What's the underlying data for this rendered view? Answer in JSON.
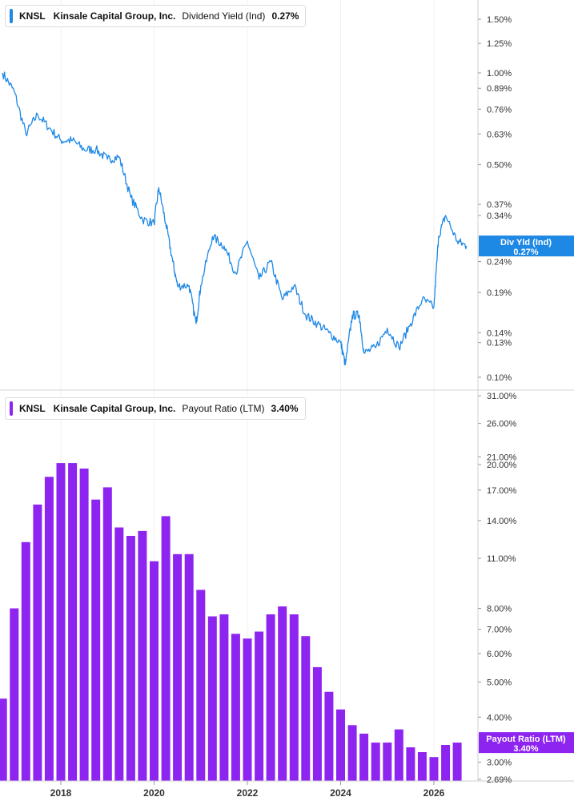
{
  "chart_data": [
    {
      "type": "line",
      "ticker": "KNSL",
      "company": "Kinsale Capital Group, Inc.",
      "metric": "Dividend Yield (Ind)",
      "current_value": "0.27%",
      "end_label": [
        "Div Yld (Ind)",
        "0.27%"
      ],
      "scale": "log",
      "color": "#1e88e5",
      "y_ticks": [
        "1.50%",
        "1.25%",
        "1.00%",
        "0.89%",
        "0.76%",
        "0.63%",
        "0.50%",
        "0.37%",
        "0.34%",
        "0.24%",
        "0.19%",
        "0.14%",
        "0.13%",
        "0.10%"
      ],
      "x": [
        2016.75,
        2017.0,
        2017.25,
        2017.5,
        2017.75,
        2018.0,
        2018.25,
        2018.5,
        2018.75,
        2019.0,
        2019.25,
        2019.5,
        2019.75,
        2020.0,
        2020.1,
        2020.25,
        2020.4,
        2020.5,
        2020.75,
        2020.9,
        2021.0,
        2021.25,
        2021.5,
        2021.75,
        2022.0,
        2022.25,
        2022.5,
        2022.75,
        2023.0,
        2023.25,
        2023.5,
        2023.75,
        2024.0,
        2024.1,
        2024.25,
        2024.4,
        2024.5,
        2024.75,
        2025.0,
        2025.25,
        2025.5,
        2025.75,
        2026.0,
        2026.1,
        2026.25,
        2026.5,
        2026.7
      ],
      "y": [
        1.0,
        0.87,
        0.63,
        0.73,
        0.66,
        0.6,
        0.6,
        0.56,
        0.56,
        0.52,
        0.53,
        0.39,
        0.33,
        0.32,
        0.42,
        0.32,
        0.24,
        0.2,
        0.2,
        0.15,
        0.2,
        0.29,
        0.27,
        0.22,
        0.28,
        0.21,
        0.24,
        0.18,
        0.2,
        0.16,
        0.15,
        0.14,
        0.13,
        0.11,
        0.16,
        0.16,
        0.12,
        0.125,
        0.145,
        0.125,
        0.15,
        0.18,
        0.17,
        0.29,
        0.34,
        0.28,
        0.27
      ]
    },
    {
      "type": "bar",
      "ticker": "KNSL",
      "company": "Kinsale Capital Group, Inc.",
      "metric": "Payout Ratio (LTM)",
      "current_value": "3.40%",
      "end_label": [
        "Payout Ratio (LTM)",
        "3.40%"
      ],
      "scale": "log",
      "color": "#8e24f0",
      "y_ticks": [
        "31.00%",
        "26.00%",
        "21.00%",
        "20.00%",
        "17.00%",
        "14.00%",
        "11.00%",
        "8.00%",
        "7.00%",
        "6.00%",
        "5.00%",
        "4.00%",
        "3.00%",
        "2.69%"
      ],
      "x_ticks": [
        "2018",
        "2020",
        "2022",
        "2024",
        "2026"
      ],
      "x": [
        2016.75,
        2017.0,
        2017.25,
        2017.5,
        2017.75,
        2018.0,
        2018.25,
        2018.5,
        2018.75,
        2019.0,
        2019.25,
        2019.5,
        2019.75,
        2020.0,
        2020.25,
        2020.5,
        2020.75,
        2021.0,
        2021.25,
        2021.5,
        2021.75,
        2022.0,
        2022.25,
        2022.5,
        2022.75,
        2023.0,
        2023.25,
        2023.5,
        2023.75,
        2024.0,
        2024.25,
        2024.5,
        2024.75,
        2025.0,
        2025.25,
        2025.5,
        2025.75,
        2026.0,
        2026.25,
        2026.5
      ],
      "values": [
        4.5,
        8.0,
        12.2,
        15.5,
        18.5,
        20.2,
        20.2,
        19.5,
        16.0,
        17.3,
        13.4,
        12.7,
        13.1,
        10.8,
        14.4,
        11.3,
        11.3,
        9.0,
        7.6,
        7.7,
        6.8,
        6.6,
        6.9,
        7.7,
        8.1,
        7.7,
        6.7,
        5.5,
        4.7,
        4.2,
        3.8,
        3.6,
        3.4,
        3.4,
        3.7,
        3.3,
        3.2,
        3.1,
        3.35,
        3.4
      ]
    }
  ]
}
